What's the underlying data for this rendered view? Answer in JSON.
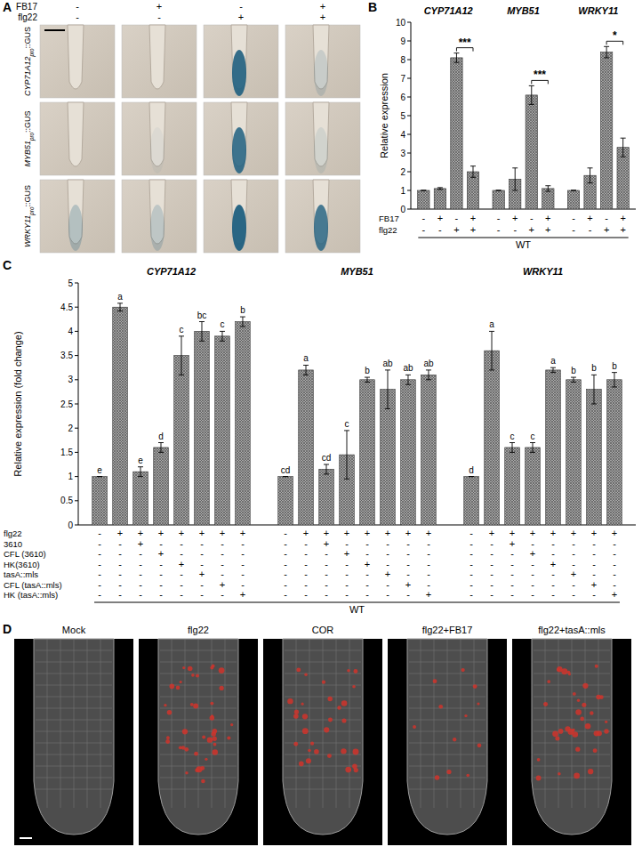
{
  "chart_data": [
    {
      "type": "bar",
      "panel_label": "B",
      "y_label": "Relative expression",
      "ylim": [
        0,
        10
      ],
      "yticks": [
        0,
        1,
        2,
        3,
        4,
        5,
        6,
        7,
        8,
        9,
        10
      ],
      "color": "#a6a6a6",
      "grid": false,
      "groups": [
        {
          "name": "CYP71A12",
          "values": [
            1,
            1.1,
            8.1,
            2.0
          ],
          "errors": [
            0,
            0.05,
            0.25,
            0.3
          ],
          "significance": "***"
        },
        {
          "name": "MYB51",
          "values": [
            1,
            1.6,
            6.1,
            1.1
          ],
          "errors": [
            0,
            0.6,
            0.5,
            0.15
          ],
          "significance": "***"
        },
        {
          "name": "WRKY11",
          "values": [
            1,
            1.8,
            8.4,
            3.3
          ],
          "errors": [
            0,
            0.4,
            0.3,
            0.5
          ],
          "significance": "*"
        }
      ],
      "treatments": [
        {
          "label": "FB17",
          "signs": [
            "-",
            "+",
            "-",
            "+"
          ]
        },
        {
          "label": "flg22",
          "signs": [
            "-",
            "-",
            "+",
            "+"
          ]
        }
      ],
      "genotype": "WT"
    },
    {
      "type": "bar",
      "panel_label": "C",
      "y_label": "Relative expression (fold change)",
      "ylim": [
        0,
        5
      ],
      "yticks": [
        0,
        0.5,
        1,
        1.5,
        2,
        2.5,
        3,
        3.5,
        4,
        4.5,
        5
      ],
      "color": "#a6a6a6",
      "grid": false,
      "groups": [
        {
          "name": "CYP71A12",
          "values": [
            1,
            4.5,
            1.1,
            1.6,
            3.5,
            4.0,
            3.9,
            4.2
          ],
          "errors": [
            0,
            0.08,
            0.1,
            0.1,
            0.4,
            0.2,
            0.1,
            0.1
          ],
          "letters": [
            "e",
            "a",
            "e",
            "d",
            "c",
            "bc",
            "c",
            "b"
          ]
        },
        {
          "name": "MYB51",
          "values": [
            1,
            3.2,
            1.15,
            1.45,
            3.0,
            2.8,
            3.0,
            3.1
          ],
          "errors": [
            0,
            0.1,
            0.1,
            0.5,
            0.05,
            0.4,
            0.1,
            0.1
          ],
          "letters": [
            "cd",
            "a",
            "cd",
            "c",
            "b",
            "ab",
            "ab",
            "ab"
          ]
        },
        {
          "name": "WRKY11",
          "values": [
            1,
            3.6,
            1.6,
            1.6,
            3.2,
            3.0,
            2.8,
            3.0
          ],
          "errors": [
            0,
            0.4,
            0.1,
            0.1,
            0.05,
            0.05,
            0.3,
            0.15
          ],
          "letters": [
            "d",
            "a",
            "c",
            "c",
            "a",
            "b",
            "b",
            "b"
          ]
        }
      ],
      "treatments": [
        {
          "label": "flg22",
          "signs": [
            "-",
            "+",
            "+",
            "+",
            "+",
            "+",
            "+",
            "+"
          ]
        },
        {
          "label": "3610",
          "signs": [
            "-",
            "-",
            "+",
            "-",
            "-",
            "-",
            "-",
            "-"
          ]
        },
        {
          "label": "CFL (3610)",
          "signs": [
            "-",
            "-",
            "-",
            "+",
            "-",
            "-",
            "-",
            "-"
          ]
        },
        {
          "label": "HK(3610)",
          "signs": [
            "-",
            "-",
            "-",
            "-",
            "+",
            "-",
            "-",
            "-"
          ]
        },
        {
          "label": "tasA::mls",
          "signs": [
            "-",
            "-",
            "-",
            "-",
            "-",
            "+",
            "-",
            "-"
          ]
        },
        {
          "label": "CFL (tasA::mls)",
          "signs": [
            "-",
            "-",
            "-",
            "-",
            "-",
            "-",
            "+",
            "-"
          ]
        },
        {
          "label": "HK (tasA::mls)",
          "signs": [
            "-",
            "-",
            "-",
            "-",
            "-",
            "-",
            "-",
            "+"
          ]
        }
      ],
      "genotype": "WT"
    }
  ],
  "panel_a": {
    "panel_label": "A",
    "treatments": [
      {
        "label": "FB17",
        "signs": [
          "-",
          "+",
          "-",
          "+"
        ]
      },
      {
        "label": "flg22",
        "signs": [
          "-",
          "-",
          "+",
          "+"
        ]
      }
    ],
    "rows": [
      "CYP71A12pro::GUS",
      "MYB51pro::GUS",
      "WRKY11pro::GUS"
    ]
  },
  "panel_d": {
    "panel_label": "D",
    "columns": [
      "Mock",
      "flg22",
      "COR",
      "flg22+FB17",
      "flg22+tasA::mls"
    ]
  }
}
